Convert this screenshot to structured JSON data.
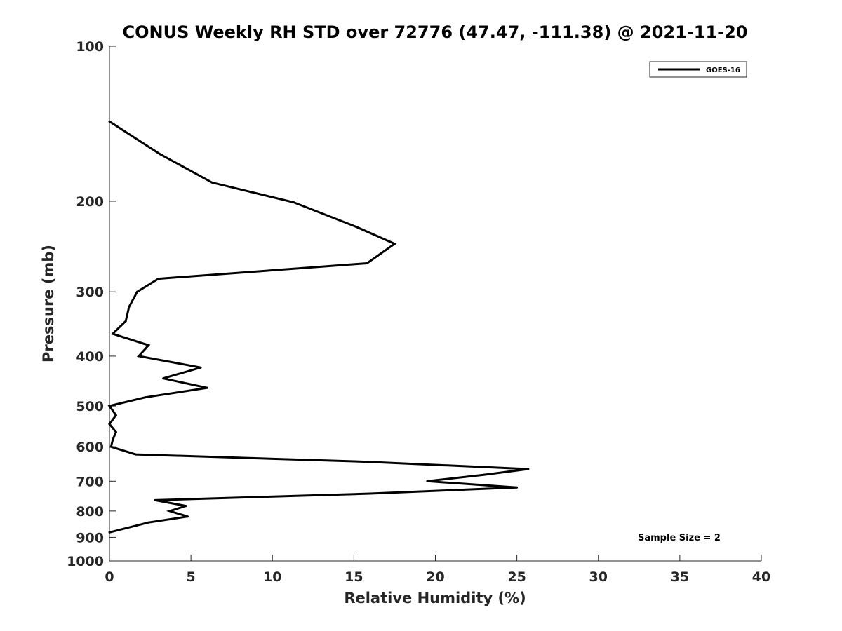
{
  "chart_data": {
    "type": "line",
    "title": "CONUS Weekly RH STD over 72776 (47.47, -111.38) @ 2021-11-20",
    "xlabel": "Relative Humidity (%)",
    "ylabel": "Pressure (mb)",
    "xlim": [
      0,
      40
    ],
    "ylim": [
      100,
      1000
    ],
    "y_scale": "log",
    "y_reversed": true,
    "x_ticks": [
      0,
      5,
      10,
      15,
      20,
      25,
      30,
      35,
      40
    ],
    "y_ticks": [
      100,
      200,
      300,
      400,
      500,
      600,
      700,
      800,
      900,
      1000
    ],
    "grid": false,
    "legend_position": "top-right",
    "series": [
      {
        "name": "GOES-16",
        "color": "#000000",
        "points": [
          [
            0.0,
            140
          ],
          [
            3.1,
            162
          ],
          [
            6.3,
            184
          ],
          [
            11.3,
            201
          ],
          [
            15.1,
            224
          ],
          [
            17.5,
            242
          ],
          [
            15.8,
            264
          ],
          [
            3.0,
            283
          ],
          [
            1.7,
            300
          ],
          [
            1.2,
            321
          ],
          [
            1.0,
            342
          ],
          [
            0.2,
            362
          ],
          [
            2.4,
            381
          ],
          [
            1.8,
            400
          ],
          [
            5.6,
            421
          ],
          [
            3.3,
            442
          ],
          [
            6.0,
            461
          ],
          [
            2.2,
            481
          ],
          [
            0.0,
            500
          ],
          [
            0.4,
            521
          ],
          [
            0.0,
            542
          ],
          [
            0.4,
            562
          ],
          [
            0.2,
            582
          ],
          [
            0.1,
            600
          ],
          [
            1.6,
            621
          ],
          [
            15.9,
            642
          ],
          [
            25.7,
            663
          ],
          [
            23.0,
            680
          ],
          [
            19.5,
            700
          ],
          [
            25.0,
            720
          ],
          [
            16.0,
            740
          ],
          [
            2.8,
            762
          ],
          [
            4.7,
            782
          ],
          [
            3.7,
            800
          ],
          [
            4.8,
            820
          ],
          [
            2.4,
            842
          ],
          [
            0.0,
            880
          ]
        ]
      }
    ],
    "annotations": [
      "Sample Size = 2"
    ]
  }
}
